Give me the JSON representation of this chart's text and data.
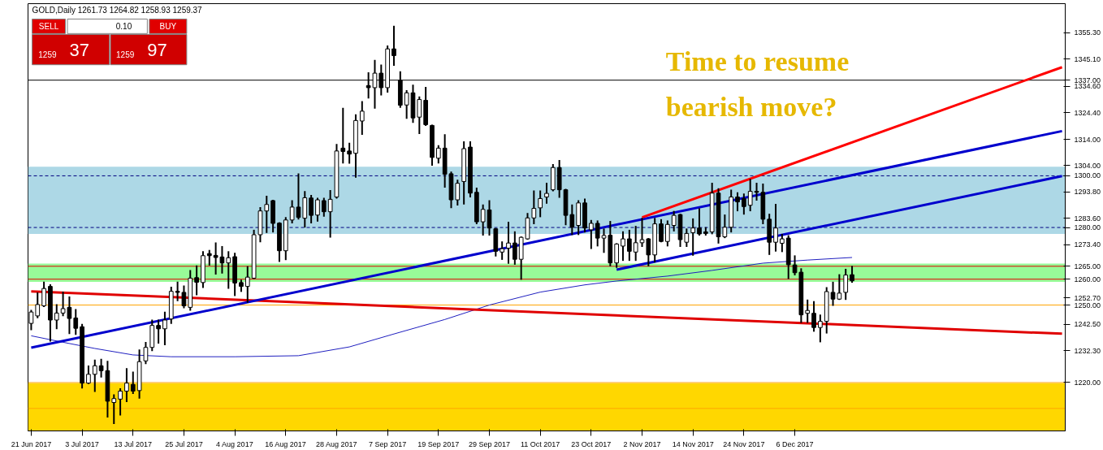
{
  "chart_data": {
    "type": "candlestick",
    "title": "GOLD,Daily 1261.73 1264.82 1258.93 1259.37",
    "categories": [
      "21 Jun 2017",
      null,
      null,
      null,
      null,
      null,
      null,
      null,
      "3 Jul 2017",
      null,
      null,
      null,
      null,
      null,
      null,
      null,
      "13 Jul 2017",
      null,
      null,
      null,
      null,
      null,
      null,
      null,
      "25 Jul 2017",
      null,
      null,
      null,
      null,
      null,
      null,
      null,
      "4 Aug 2017",
      null,
      null,
      null,
      null,
      null,
      null,
      null,
      "16 Aug 2017",
      null,
      null,
      null,
      null,
      null,
      null,
      null,
      "28 Aug 2017",
      null,
      null,
      null,
      null,
      null,
      null,
      null,
      "7 Sep 2017",
      null,
      null,
      null,
      null,
      null,
      null,
      null,
      "19 Sep 2017",
      null,
      null,
      null,
      null,
      null,
      null,
      null,
      "29 Sep 2017",
      null,
      null,
      null,
      null,
      null,
      null,
      null,
      "11 Oct 2017",
      null,
      null,
      null,
      null,
      null,
      null,
      null,
      "23 Oct 2017",
      null,
      null,
      null,
      null,
      null,
      null,
      null,
      "2 Nov 2017",
      null,
      null,
      null,
      null,
      null,
      null,
      null,
      "14 Nov 2017",
      null,
      null,
      null,
      null,
      null,
      null,
      null,
      "24 Nov 2017",
      null,
      null,
      null,
      null,
      null,
      null,
      null,
      "6 Dec 2017",
      null,
      null,
      null,
      null,
      null,
      null,
      null,
      null,
      null,
      null,
      null,
      null,
      null,
      null,
      null,
      null,
      null,
      null,
      null,
      null,
      null,
      null,
      null,
      null,
      null,
      null,
      null,
      null,
      null,
      null,
      null,
      null,
      null,
      null,
      null,
      null,
      null,
      null,
      null,
      null,
      null,
      null
    ],
    "ohlc": [
      [
        1242.9,
        1247.8,
        1240.6,
        1247.3
      ],
      [
        1245.8,
        1254.6,
        1245.2,
        1250.2
      ],
      [
        1249.7,
        1258.7,
        1249.5,
        1256.4
      ],
      [
        1257.2,
        1257.7,
        1236.2,
        1244.2
      ],
      [
        1244.2,
        1250.0,
        1241.0,
        1246.9
      ],
      [
        1246.9,
        1254.9,
        1246.0,
        1248.6
      ],
      [
        1249.1,
        1253.0,
        1239.1,
        1244.8
      ],
      [
        1245.0,
        1248.1,
        1238.8,
        1241.0
      ],
      [
        1241.6,
        1242.4,
        1218.0,
        1219.8
      ],
      [
        1219.8,
        1226.3,
        1219.8,
        1223.2
      ],
      [
        1223.2,
        1228.6,
        1216.7,
        1226.5
      ],
      [
        1226.5,
        1228.9,
        1222.3,
        1224.6
      ],
      [
        1224.6,
        1228.1,
        1206.8,
        1212.8
      ],
      [
        1212.3,
        1215.1,
        1204.3,
        1213.8
      ],
      [
        1213.6,
        1217.5,
        1207.6,
        1216.7
      ],
      [
        1216.7,
        1225.3,
        1212.8,
        1219.8
      ],
      [
        1219.3,
        1223.9,
        1215.9,
        1216.7
      ],
      [
        1216.9,
        1232.5,
        1214.1,
        1228.1
      ],
      [
        1228.4,
        1235.4,
        1227.5,
        1233.6
      ],
      [
        1233.6,
        1244.0,
        1232.5,
        1242.1
      ],
      [
        1242.1,
        1244.0,
        1235.4,
        1240.8
      ],
      [
        1240.8,
        1247.1,
        1234.8,
        1244.2
      ],
      [
        1244.6,
        1256.8,
        1243.0,
        1255.3
      ],
      [
        1255.3,
        1258.7,
        1251.8,
        1254.9
      ],
      [
        1254.9,
        1257.2,
        1249.1,
        1249.7
      ],
      [
        1249.1,
        1263.2,
        1248.1,
        1260.4
      ],
      [
        1260.6,
        1265.0,
        1254.1,
        1258.8
      ],
      [
        1258.7,
        1270.5,
        1256.9,
        1269.1
      ],
      [
        1269.9,
        1271.0,
        1265.6,
        1269.1
      ],
      [
        1269.2,
        1273.9,
        1262.1,
        1268.4
      ],
      [
        1268.6,
        1272.5,
        1262.5,
        1266.3
      ],
      [
        1266.3,
        1270.5,
        1256.6,
        1268.3
      ],
      [
        1268.7,
        1269.9,
        1253.8,
        1258.5
      ],
      [
        1258.7,
        1259.5,
        1255.4,
        1257.2
      ],
      [
        1257.2,
        1264.7,
        1251.2,
        1260.8
      ],
      [
        1260.4,
        1278.8,
        1260.4,
        1277.2
      ],
      [
        1277.2,
        1287.6,
        1274.6,
        1286.4
      ],
      [
        1286.4,
        1292.0,
        1278.2,
        1288.9
      ],
      [
        1290.4,
        1290.4,
        1278.4,
        1281.6
      ],
      [
        1281.7,
        1281.7,
        1267.0,
        1271.0
      ],
      [
        1271.0,
        1283.7,
        1267.7,
        1282.9
      ],
      [
        1282.9,
        1290.2,
        1281.9,
        1287.9
      ],
      [
        1287.9,
        1300.6,
        1283.4,
        1283.9
      ],
      [
        1283.6,
        1293.8,
        1280.3,
        1291.5
      ],
      [
        1291.4,
        1292.3,
        1281.9,
        1284.7
      ],
      [
        1284.8,
        1291.2,
        1282.6,
        1290.7
      ],
      [
        1290.4,
        1291.2,
        1284.5,
        1286.1
      ],
      [
        1286.1,
        1294.2,
        1276.4,
        1290.9
      ],
      [
        1291.8,
        1312.0,
        1291.5,
        1309.6
      ],
      [
        1310.7,
        1326.0,
        1305.1,
        1309.4
      ],
      [
        1309.6,
        1312.5,
        1305.0,
        1308.4
      ],
      [
        1308.7,
        1323.5,
        1299.6,
        1321.4
      ],
      [
        1321.2,
        1328.6,
        1316.2,
        1325.0
      ],
      [
        1334.9,
        1339.7,
        1330.2,
        1334.1
      ],
      [
        1334.1,
        1344.5,
        1326.3,
        1339.7
      ],
      [
        1339.7,
        1342.7,
        1331.4,
        1334.1
      ],
      [
        1334.1,
        1350.1,
        1332.5,
        1349.1
      ],
      [
        1349.1,
        1357.7,
        1342.9,
        1346.5
      ],
      [
        1336.9,
        1340.1,
        1326.6,
        1327.3
      ],
      [
        1327.4,
        1332.8,
        1322.4,
        1332.1
      ],
      [
        1332.1,
        1334.9,
        1320.8,
        1322.4
      ],
      [
        1322.7,
        1330.4,
        1316.5,
        1329.5
      ],
      [
        1329.2,
        1334.1,
        1319.6,
        1319.8
      ],
      [
        1319.5,
        1319.5,
        1304.2,
        1307.1
      ],
      [
        1306.8,
        1311.5,
        1305.1,
        1310.7
      ],
      [
        1310.7,
        1315.8,
        1295.7,
        1300.6
      ],
      [
        1300.8,
        1301.3,
        1287.8,
        1290.7
      ],
      [
        1290.7,
        1298.2,
        1288.8,
        1297.1
      ],
      [
        1297.8,
        1313.0,
        1289.2,
        1310.5
      ],
      [
        1311.1,
        1313.0,
        1292.0,
        1293.3
      ],
      [
        1293.6,
        1295.1,
        1281.6,
        1282.2
      ],
      [
        1282.2,
        1288.6,
        1277.2,
        1287.0
      ],
      [
        1286.8,
        1290.2,
        1277.2,
        1279.8
      ],
      [
        1279.5,
        1279.5,
        1269.1,
        1270.8
      ],
      [
        1270.5,
        1274.3,
        1267.8,
        1271.8
      ],
      [
        1272.0,
        1281.9,
        1266.3,
        1274.0
      ],
      [
        1274.0,
        1278.2,
        1265.9,
        1267.7
      ],
      [
        1267.7,
        1276.2,
        1260.1,
        1276.2
      ],
      [
        1275.6,
        1285.3,
        1275.6,
        1283.7
      ],
      [
        1283.7,
        1294.0,
        1281.6,
        1287.4
      ],
      [
        1287.6,
        1294.0,
        1284.3,
        1291.2
      ],
      [
        1291.8,
        1297.0,
        1289.5,
        1293.2
      ],
      [
        1294.6,
        1304.2,
        1294.3,
        1303.2
      ],
      [
        1303.2,
        1305.8,
        1291.8,
        1294.6
      ],
      [
        1294.6,
        1294.6,
        1281.2,
        1284.7
      ],
      [
        1285.0,
        1288.6,
        1277.4,
        1280.1
      ],
      [
        1280.8,
        1290.2,
        1277.4,
        1289.5
      ],
      [
        1289.5,
        1290.9,
        1278.4,
        1279.8
      ],
      [
        1279.1,
        1282.6,
        1272.0,
        1281.6
      ],
      [
        1281.6,
        1282.4,
        1273.0,
        1275.9
      ],
      [
        1275.9,
        1279.3,
        1270.5,
        1276.9
      ],
      [
        1277.0,
        1282.2,
        1265.3,
        1266.3
      ],
      [
        1266.3,
        1273.6,
        1264.7,
        1273.6
      ],
      [
        1272.8,
        1278.2,
        1267.4,
        1275.6
      ],
      [
        1275.6,
        1278.8,
        1267.4,
        1270.8
      ],
      [
        1270.5,
        1280.3,
        1267.4,
        1274.1
      ],
      [
        1274.1,
        1283.4,
        1272.8,
        1275.3
      ],
      [
        1275.6,
        1275.6,
        1265.3,
        1269.4
      ],
      [
        1269.4,
        1283.4,
        1266.8,
        1281.4
      ],
      [
        1281.4,
        1282.9,
        1274.6,
        1274.6
      ],
      [
        1274.6,
        1282.4,
        1273.0,
        1281.2
      ],
      [
        1280.8,
        1286.1,
        1278.8,
        1284.7
      ],
      [
        1285.0,
        1285.0,
        1272.8,
        1275.3
      ],
      [
        1274.3,
        1279.3,
        1272.8,
        1277.7
      ],
      [
        1278.0,
        1283.2,
        1269.4,
        1279.8
      ],
      [
        1279.8,
        1287.1,
        1277.2,
        1277.5
      ],
      [
        1278.3,
        1279.8,
        1277.2,
        1277.7
      ],
      [
        1278.3,
        1297.0,
        1277.7,
        1293.3
      ],
      [
        1293.3,
        1294.9,
        1274.1,
        1276.4
      ],
      [
        1276.4,
        1284.7,
        1276.2,
        1280.1
      ],
      [
        1280.1,
        1294.3,
        1278.4,
        1291.8
      ],
      [
        1291.8,
        1293.3,
        1286.6,
        1289.9
      ],
      [
        1291.2,
        1292.8,
        1285.3,
        1288.1
      ],
      [
        1288.6,
        1298.5,
        1286.6,
        1294.0
      ],
      [
        1294.0,
        1297.0,
        1290.7,
        1293.6
      ],
      [
        1293.6,
        1296.7,
        1281.6,
        1283.2
      ],
      [
        1283.2,
        1285.0,
        1269.7,
        1274.3
      ],
      [
        1274.3,
        1288.8,
        1271.0,
        1279.8
      ],
      [
        1273.9,
        1277.2,
        1270.8,
        1275.6
      ],
      [
        1275.9,
        1276.7,
        1260.4,
        1265.6
      ],
      [
        1265.5,
        1268.9,
        1261.8,
        1262.5
      ],
      [
        1262.7,
        1263.9,
        1243.4,
        1246.2
      ],
      [
        1246.8,
        1251.8,
        1243.4,
        1247.9
      ],
      [
        1246.8,
        1251.2,
        1240.0,
        1241.3
      ],
      [
        1241.3,
        1246.0,
        1235.9,
        1243.7
      ],
      [
        1243.7,
        1256.6,
        1239.3,
        1255.2
      ],
      [
        1254.9,
        1258.7,
        1250.0,
        1252.3
      ],
      [
        1252.3,
        1261.6,
        1252.3,
        1254.6
      ],
      [
        1254.9,
        1263.7,
        1252.3,
        1261.6
      ],
      [
        1261.73,
        1264.82,
        1258.93,
        1259.37
      ],
      null,
      null,
      null,
      null,
      null,
      null,
      null,
      null,
      null,
      null,
      null,
      null,
      null,
      null,
      null,
      null,
      null,
      null,
      null,
      null,
      null,
      null,
      null,
      null,
      null,
      null,
      null,
      null,
      null,
      null,
      null,
      null,
      null
    ],
    "series": [
      {
        "type": "line",
        "color": "#2020c0",
        "values": [
          1238.1,
          null,
          null,
          null,
          null,
          1235.6,
          null,
          null,
          null,
          null,
          1233.2,
          null,
          null,
          null,
          null,
          null,
          1230.7,
          null,
          null,
          null,
          null,
          null,
          1230.0,
          null,
          null,
          null,
          null,
          null,
          null,
          null,
          null,
          null,
          1230.0,
          null,
          null,
          null,
          null,
          null,
          null,
          null,
          null,
          null,
          1230.4,
          null,
          null,
          null,
          null,
          null,
          null,
          null,
          1233.8,
          null,
          null,
          null,
          null,
          null,
          null,
          1238.8,
          null,
          null,
          null,
          null,
          null,
          null,
          null,
          1244.4,
          null,
          null,
          null,
          null,
          null,
          null,
          1250.0,
          null,
          null,
          null,
          null,
          null,
          null,
          null,
          1255.0,
          null,
          null,
          null,
          null,
          null,
          null,
          1257.8,
          null,
          null,
          null,
          null,
          1259.3,
          null,
          null,
          null,
          null,
          null,
          null,
          null,
          1261.2,
          null,
          null,
          null,
          null,
          null,
          null,
          1263.4,
          null,
          null,
          null,
          null,
          null,
          null,
          null,
          1266.2,
          null,
          null,
          null,
          null,
          null,
          null,
          1267.4,
          null,
          null,
          null,
          null,
          null,
          null,
          1268.4,
          null,
          null,
          null,
          null,
          null,
          null,
          null,
          null,
          null,
          null,
          null,
          null,
          null,
          null,
          null,
          null,
          null,
          null,
          null,
          null,
          null,
          null,
          null,
          null,
          null,
          null,
          null,
          null,
          null,
          null,
          null,
          null,
          null
        ]
      },
      {
        "type": "line",
        "color": "#e00000",
        "values": [
          1255.3,
          null,
          null,
          null,
          null,
          null,
          null,
          null,
          null,
          null,
          null,
          null,
          null,
          null,
          null,
          null,
          null,
          null,
          null,
          null,
          null,
          null,
          null,
          null,
          null,
          null,
          null,
          null,
          null,
          null,
          null,
          null,
          null,
          null,
          null,
          null,
          null,
          null,
          null,
          null,
          null,
          null,
          null,
          null,
          null,
          null,
          null,
          null,
          null,
          null,
          null,
          null,
          null,
          null,
          null,
          null,
          null,
          null,
          null,
          null,
          null,
          null,
          null,
          null,
          null,
          null,
          null,
          null,
          null,
          null,
          null,
          null,
          null,
          null,
          null,
          null,
          null,
          null,
          null,
          null,
          null,
          null,
          null,
          null,
          null,
          null,
          null,
          null,
          null,
          null,
          null,
          null,
          null,
          null,
          null,
          null,
          null,
          null,
          null,
          null,
          null,
          null,
          null,
          null,
          null,
          null,
          null,
          null,
          null,
          null,
          null,
          null,
          null,
          null,
          null,
          null,
          null,
          null,
          null,
          null,
          null,
          null,
          null,
          null,
          null,
          null,
          null,
          null,
          null,
          null,
          null,
          null,
          null,
          null,
          null,
          null,
          null,
          null,
          null,
          null,
          null,
          null,
          null,
          null,
          null,
          null,
          null,
          null,
          null,
          null,
          null,
          null,
          null,
          null,
          null,
          null,
          null,
          null,
          null,
          null,
          null,
          null,
          1238.9
        ]
      },
      {
        "type": "line",
        "color": "#0000cd",
        "values": [
          1233.5,
          null,
          null,
          null,
          null,
          null,
          null,
          null,
          null,
          null,
          null,
          null,
          null,
          null,
          null,
          null,
          null,
          null,
          null,
          null,
          null,
          null,
          null,
          null,
          null,
          null,
          null,
          null,
          null,
          null,
          null,
          null,
          null,
          null,
          null,
          null,
          null,
          null,
          null,
          null,
          null,
          null,
          null,
          null,
          null,
          null,
          null,
          null,
          null,
          null,
          null,
          null,
          null,
          null,
          null,
          null,
          null,
          null,
          null,
          null,
          null,
          null,
          null,
          null,
          null,
          null,
          null,
          null,
          null,
          null,
          null,
          null,
          null,
          null,
          null,
          null,
          null,
          null,
          null,
          null,
          null,
          null,
          null,
          null,
          null,
          null,
          null,
          null,
          null,
          null,
          null,
          null,
          null,
          null,
          null,
          null,
          null,
          null,
          null,
          null,
          null,
          null,
          null,
          null,
          null,
          null,
          null,
          null,
          null,
          null,
          null,
          null,
          null,
          null,
          null,
          null,
          null,
          null,
          null,
          null,
          null,
          null,
          null,
          null,
          null,
          null,
          null,
          null,
          null,
          null,
          null,
          null,
          null,
          null,
          null,
          null,
          null,
          null,
          null,
          null,
          null,
          null,
          null,
          null,
          null,
          null,
          null,
          null,
          null,
          null,
          null,
          null,
          null,
          null,
          null,
          null,
          null,
          null,
          null,
          null,
          null,
          null,
          1317.3
        ]
      },
      {
        "type": "line",
        "color": "#0000cd",
        "values": [
          null,
          null,
          null,
          null,
          null,
          null,
          null,
          null,
          null,
          null,
          null,
          null,
          null,
          null,
          null,
          null,
          null,
          null,
          null,
          null,
          null,
          null,
          null,
          null,
          null,
          null,
          null,
          null,
          null,
          null,
          null,
          null,
          null,
          null,
          null,
          null,
          null,
          null,
          null,
          null,
          null,
          null,
          null,
          null,
          null,
          null,
          null,
          null,
          null,
          null,
          null,
          null,
          null,
          null,
          null,
          null,
          null,
          null,
          null,
          null,
          null,
          null,
          null,
          null,
          null,
          null,
          null,
          null,
          null,
          null,
          null,
          null,
          null,
          null,
          null,
          null,
          null,
          null,
          null,
          null,
          null,
          null,
          null,
          null,
          null,
          null,
          null,
          null,
          null,
          null,
          null,
          null,
          1263.7,
          null,
          null,
          null,
          null,
          null,
          null,
          null,
          null,
          null,
          null,
          null,
          null,
          null,
          null,
          null,
          null,
          null,
          null,
          null,
          null,
          null,
          null,
          null,
          null,
          null,
          null,
          null,
          null,
          null,
          null,
          null,
          null,
          null,
          null,
          null,
          null,
          null,
          null,
          null,
          null,
          null,
          null,
          null,
          null,
          null,
          null,
          null,
          null,
          null,
          null,
          null,
          null,
          null,
          null,
          null,
          null,
          null,
          null,
          null,
          null,
          null,
          null,
          null,
          null,
          null,
          null,
          null,
          null,
          null,
          1299.9
        ]
      },
      {
        "type": "line",
        "color": "#ff0000",
        "values": [
          null,
          null,
          null,
          null,
          null,
          null,
          null,
          null,
          null,
          null,
          null,
          null,
          null,
          null,
          null,
          null,
          null,
          null,
          null,
          null,
          null,
          null,
          null,
          null,
          null,
          null,
          null,
          null,
          null,
          null,
          null,
          null,
          null,
          null,
          null,
          null,
          null,
          null,
          null,
          null,
          null,
          null,
          null,
          null,
          null,
          null,
          null,
          null,
          null,
          null,
          null,
          null,
          null,
          null,
          null,
          null,
          null,
          null,
          null,
          null,
          null,
          null,
          null,
          null,
          null,
          null,
          null,
          null,
          null,
          null,
          null,
          null,
          null,
          null,
          null,
          null,
          null,
          null,
          null,
          null,
          null,
          null,
          null,
          null,
          null,
          null,
          null,
          null,
          null,
          null,
          null,
          null,
          null,
          null,
          null,
          null,
          1283.9,
          null,
          null,
          null,
          null,
          null,
          null,
          null,
          null,
          null,
          null,
          null,
          null,
          null,
          null,
          null,
          null,
          null,
          null,
          null,
          null,
          null,
          null,
          null,
          null,
          null,
          null,
          null,
          null,
          null,
          null,
          null,
          null,
          null,
          null,
          null,
          null,
          null,
          null,
          null,
          null,
          null,
          null,
          null,
          null,
          null,
          null,
          null,
          null,
          null,
          null,
          null,
          null,
          null,
          null,
          null,
          null,
          null,
          null,
          null,
          null,
          null,
          null,
          null,
          null,
          null,
          1342.0
        ]
      }
    ],
    "bands": [
      {
        "axis": "y",
        "from": 1277.5,
        "to": 1303.5,
        "color": "#add8e6"
      },
      {
        "axis": "y",
        "from": 1259.0,
        "to": 1266.0,
        "color": "#98fb98"
      },
      {
        "axis": "y",
        "from": 1201.3,
        "to": 1219.8,
        "color": "#ffd700"
      }
    ],
    "ref_lines": [
      {
        "axis": "y",
        "value": 1337,
        "label": "1337.00",
        "color": "#000000"
      },
      {
        "axis": "y",
        "value": 1300,
        "label": "1300.00",
        "color": "#000080",
        "line_style": "dashed"
      },
      {
        "axis": "y",
        "value": 1280,
        "label": "1280.00",
        "color": "#000080",
        "line_style": "dashed"
      },
      {
        "axis": "y",
        "value": 1265,
        "label": "1265.00",
        "color": "#e00000"
      },
      {
        "axis": "y",
        "value": 1260,
        "label": "1260.00",
        "color": "#e00000"
      },
      {
        "axis": "y",
        "value": 1250,
        "label": "1250.00",
        "color": "#ffa500"
      },
      {
        "axis": "y",
        "value": 1220,
        "label": "1220.00",
        "color": "#ffa500"
      },
      {
        "axis": "y",
        "value": 1210,
        "color": "#ffa500"
      }
    ],
    "annotations": [
      "Time to resume\nbearish move?",
      "SELL",
      "BUY",
      "0.10",
      "1259",
      "37",
      "1259",
      "97"
    ],
    "ylim": [
      1201.3,
      1366.6
    ],
    "yticks": [
      {
        "value": 1232.3,
        "label": "1232.30"
      },
      {
        "value": 1242.5,
        "label": "1242.50"
      },
      {
        "value": 1252.7,
        "label": "1252.70"
      },
      {
        "value": 1273.4,
        "label": "1273.40"
      },
      {
        "value": 1283.6,
        "label": "1283.60"
      },
      {
        "value": 1293.8,
        "label": "1293.80"
      },
      {
        "value": 1304.0,
        "label": "1304.00"
      },
      {
        "value": 1314.0,
        "label": "1314.00"
      },
      {
        "value": 1324.4,
        "label": "1324.40"
      },
      {
        "value": 1334.6,
        "label": "1334.60"
      },
      {
        "value": 1345.1,
        "label": "1345.10"
      },
      {
        "value": 1355.3,
        "label": "1355.30"
      }
    ]
  }
}
